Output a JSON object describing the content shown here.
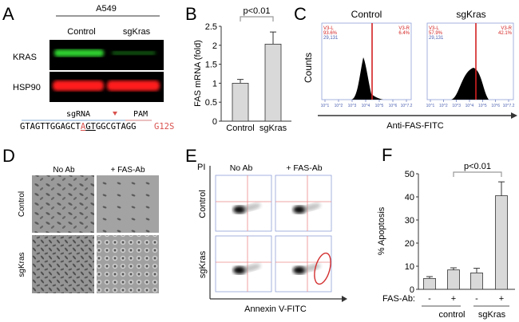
{
  "panel_letters": {
    "a": "A",
    "b": "B",
    "c": "C",
    "d": "D",
    "e": "E",
    "f": "F"
  },
  "panel_a": {
    "cell_line": "A549",
    "lanes": [
      "Control",
      "sgKras"
    ],
    "rows": [
      "KRAS",
      "HSP90"
    ],
    "sgrna_label": "sgRNA",
    "pam_label": "PAM",
    "sequence_pre": "GTAGTTGGAGCT",
    "sequence_mut": "A",
    "sequence_underlined": "GT",
    "sequence_post": "GGCGTAGG",
    "mutation": "G12S",
    "colors": {
      "kras_band": "#2fd02f",
      "hsp90_band": "#ff1a1a",
      "mutation": "#d9534f"
    }
  },
  "panel_c": {
    "ylabel": "Counts",
    "xlabel": "Anti-FAS-FITC",
    "panels": [
      {
        "title": "Control",
        "left_gate": "V3-L",
        "left_pct": "93.6%",
        "right_gate": "V3-R",
        "right_pct": "6.4%",
        "events": "29,131",
        "ytick_mid": "500"
      },
      {
        "title": "sgKras",
        "left_gate": "V3-L",
        "left_pct": "57.9%",
        "right_gate": "V3-R",
        "right_pct": "42.1%",
        "events": "29,131",
        "ytick_mid": "500"
      }
    ],
    "xticks": [
      "10^1",
      "10^2",
      "10^3",
      "10^4",
      "10^5",
      "10^6",
      "10^7.2"
    ]
  },
  "panel_d": {
    "columns": [
      "No Ab",
      "+ FAS-Ab"
    ],
    "rows": [
      "Control",
      "sgKras"
    ]
  },
  "panel_e": {
    "yaxis": "PI",
    "xlabel": "Annexin V-FITC",
    "columns": [
      "No Ab",
      "+ FAS-Ab"
    ],
    "rows": [
      "Control",
      "sgKras"
    ],
    "gate_color": "#d32f2f"
  },
  "chart_data": [
    {
      "type": "bar",
      "panel": "B",
      "categories": [
        "Control",
        "sgKras"
      ],
      "values": [
        1.0,
        2.03
      ],
      "errors": [
        0.1,
        0.32
      ],
      "ylabel": "FAS mRNA (fold)",
      "ylim": [
        0,
        2.5
      ],
      "yticks": [
        "0",
        "0.5",
        "1",
        "1.5",
        "2",
        "2.5"
      ],
      "annotation": "p<0.01",
      "bar_color": "#d9d9d9"
    },
    {
      "type": "bar",
      "panel": "F",
      "categories": [
        "-",
        "+",
        "-",
        "+"
      ],
      "groups": [
        "control",
        "sgKras"
      ],
      "row_label": "FAS-Ab:",
      "values": [
        4.7,
        8.4,
        7.1,
        40.5
      ],
      "errors": [
        0.8,
        0.9,
        2.0,
        6.0
      ],
      "ylabel": "% Apoptosis",
      "ylim": [
        0,
        50
      ],
      "yticks": [
        "0",
        "10",
        "20",
        "30",
        "40",
        "50"
      ],
      "annotation": "p<0.01",
      "bar_color": "#d9d9d9"
    }
  ]
}
